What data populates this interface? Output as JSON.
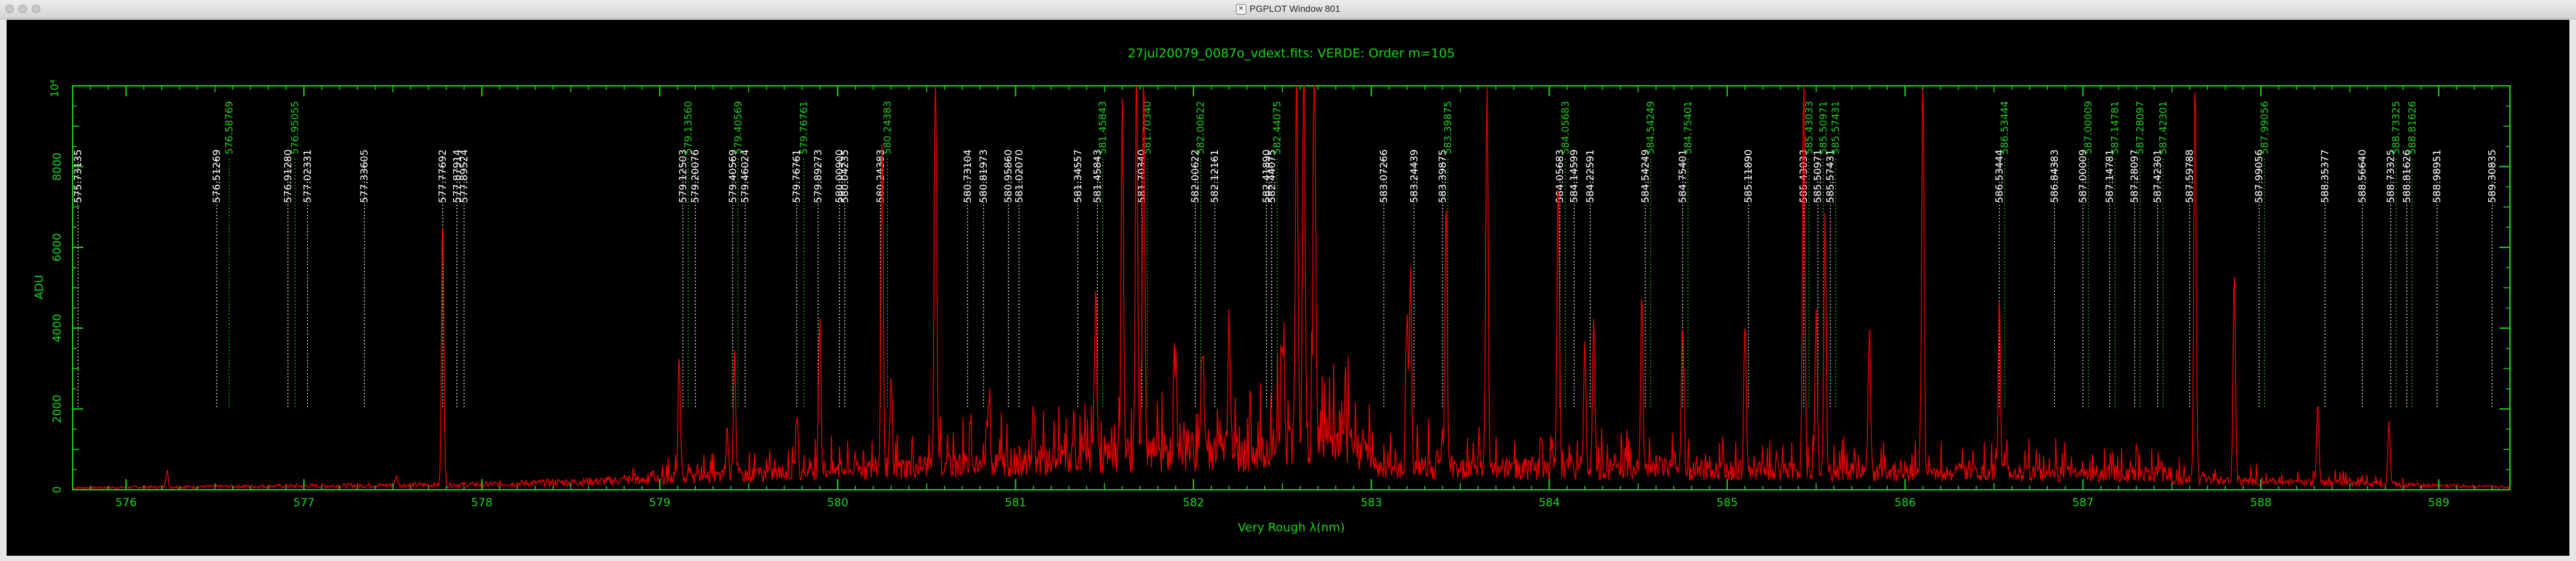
{
  "window": {
    "title": "PGPLOT Window 801",
    "app_icon": "x11-icon"
  },
  "chart_data": {
    "type": "line",
    "title": "27jul20079_0087o_vdext.fits: VERDE: Order m=105",
    "xlabel": "Very Rough λ(nm)",
    "ylabel": "ADU",
    "xlim": [
      575.7,
      589.4
    ],
    "ylim": [
      0,
      10000
    ],
    "x_ticks": [
      576,
      577,
      578,
      579,
      580,
      581,
      582,
      583,
      584,
      585,
      586,
      587,
      588,
      589
    ],
    "y_ticks": [
      0,
      2000,
      4000,
      6000,
      8000
    ],
    "y_top_label": "10⁴",
    "colors": {
      "frame": "#1fd11f",
      "spectrum": "#e60000",
      "label_white": "#ffffff",
      "label_green": "#1fd11f",
      "background": "#000000"
    },
    "series": [
      {
        "peaks": [
          [
            576.23,
            420
          ],
          [
            577.52,
            230
          ],
          [
            577.78,
            6800
          ],
          [
            579.11,
            3000
          ],
          [
            579.38,
            1100
          ],
          [
            579.42,
            3000
          ],
          [
            579.77,
            1500
          ],
          [
            579.9,
            3800
          ],
          [
            580.25,
            8200
          ],
          [
            580.3,
            2000
          ],
          [
            580.55,
            10000
          ],
          [
            580.85,
            1800
          ],
          [
            581.1,
            1500
          ],
          [
            581.45,
            4200
          ],
          [
            581.6,
            8600
          ],
          [
            581.68,
            10000
          ],
          [
            581.72,
            10000
          ],
          [
            581.9,
            2500
          ],
          [
            582.05,
            2500
          ],
          [
            582.2,
            3200
          ],
          [
            582.5,
            2500
          ],
          [
            582.58,
            10000
          ],
          [
            582.62,
            10000
          ],
          [
            582.68,
            10000
          ],
          [
            583.2,
            3500
          ],
          [
            583.22,
            4800
          ],
          [
            583.42,
            6500
          ],
          [
            583.65,
            10000
          ],
          [
            584.05,
            7500
          ],
          [
            584.2,
            3200
          ],
          [
            584.25,
            3800
          ],
          [
            584.52,
            4200
          ],
          [
            584.75,
            3700
          ],
          [
            585.1,
            3700
          ],
          [
            585.43,
            10000
          ],
          [
            585.5,
            4000
          ],
          [
            585.55,
            6500
          ],
          [
            585.8,
            3600
          ],
          [
            586.1,
            10000
          ],
          [
            586.53,
            4200
          ],
          [
            587.63,
            10000
          ],
          [
            587.85,
            5200
          ],
          [
            588.32,
            2000
          ],
          [
            588.72,
            1500
          ]
        ]
      }
    ],
    "line_labels": [
      {
        "x": 575.73,
        "text": "575.73135",
        "green": false
      },
      {
        "x": 576.51,
        "text": "576.51269",
        "green": false
      },
      {
        "x": 576.58,
        "text": "576.58769",
        "green": true
      },
      {
        "x": 576.91,
        "text": "576.91280",
        "green": false
      },
      {
        "x": 576.95,
        "text": "576.95055",
        "green": true
      },
      {
        "x": 577.02,
        "text": "577.02331",
        "green": false
      },
      {
        "x": 577.34,
        "text": "577.33605",
        "green": false
      },
      {
        "x": 577.78,
        "text": "577.77692",
        "green": false
      },
      {
        "x": 577.86,
        "text": "577.87914",
        "green": false
      },
      {
        "x": 577.9,
        "text": "577.89524",
        "green": false
      },
      {
        "x": 579.13,
        "text": "579.12503",
        "green": false
      },
      {
        "x": 579.16,
        "text": "579.13560",
        "green": true
      },
      {
        "x": 579.2,
        "text": "579.20076",
        "green": false
      },
      {
        "x": 579.41,
        "text": "579.40569",
        "green": false
      },
      {
        "x": 579.44,
        "text": "579.40569",
        "green": true
      },
      {
        "x": 579.48,
        "text": "579.46024",
        "green": false
      },
      {
        "x": 579.77,
        "text": "579.76761",
        "green": false
      },
      {
        "x": 579.81,
        "text": "579.76761",
        "green": true
      },
      {
        "x": 579.89,
        "text": "579.89273",
        "green": false
      },
      {
        "x": 580.01,
        "text": "580.00900",
        "green": false
      },
      {
        "x": 580.04,
        "text": "580.04235",
        "green": false
      },
      {
        "x": 580.24,
        "text": "580.24383",
        "green": false
      },
      {
        "x": 580.28,
        "text": "580.24383",
        "green": true
      },
      {
        "x": 580.73,
        "text": "580.73104",
        "green": false
      },
      {
        "x": 580.82,
        "text": "580.81973",
        "green": false
      },
      {
        "x": 580.96,
        "text": "580.95860",
        "green": false
      },
      {
        "x": 581.02,
        "text": "581.02070",
        "green": false
      },
      {
        "x": 581.35,
        "text": "581.34557",
        "green": false
      },
      {
        "x": 581.46,
        "text": "581.45843",
        "green": false
      },
      {
        "x": 581.49,
        "text": "581.45843",
        "green": true
      },
      {
        "x": 581.71,
        "text": "581.70340",
        "green": false
      },
      {
        "x": 581.74,
        "text": "581.70340",
        "green": true
      },
      {
        "x": 582.01,
        "text": "582.00622",
        "green": false
      },
      {
        "x": 582.04,
        "text": "582.00622",
        "green": true
      },
      {
        "x": 582.12,
        "text": "582.12161",
        "green": false
      },
      {
        "x": 582.41,
        "text": "582.41890",
        "green": false
      },
      {
        "x": 582.44,
        "text": "582.44075",
        "green": false
      },
      {
        "x": 582.47,
        "text": "582.44075",
        "green": true
      },
      {
        "x": 583.07,
        "text": "583.07266",
        "green": false
      },
      {
        "x": 583.24,
        "text": "583.24439",
        "green": false
      },
      {
        "x": 583.4,
        "text": "583.39875",
        "green": false
      },
      {
        "x": 583.43,
        "text": "583.39875",
        "green": true
      },
      {
        "x": 584.06,
        "text": "584.05683",
        "green": false
      },
      {
        "x": 584.09,
        "text": "584.05683",
        "green": true
      },
      {
        "x": 584.14,
        "text": "584.14599",
        "green": false
      },
      {
        "x": 584.23,
        "text": "584.22591",
        "green": false
      },
      {
        "x": 584.54,
        "text": "584.54249",
        "green": false
      },
      {
        "x": 584.57,
        "text": "584.54249",
        "green": true
      },
      {
        "x": 584.75,
        "text": "584.75401",
        "green": false
      },
      {
        "x": 584.78,
        "text": "584.75401",
        "green": true
      },
      {
        "x": 585.12,
        "text": "585.11890",
        "green": false
      },
      {
        "x": 585.43,
        "text": "585.43033",
        "green": false
      },
      {
        "x": 585.46,
        "text": "585.43033",
        "green": true
      },
      {
        "x": 585.51,
        "text": "585.50971",
        "green": false
      },
      {
        "x": 585.54,
        "text": "585.50971",
        "green": true
      },
      {
        "x": 585.58,
        "text": "585.57431",
        "green": false
      },
      {
        "x": 585.61,
        "text": "585.57431",
        "green": true
      },
      {
        "x": 586.53,
        "text": "586.53444",
        "green": false
      },
      {
        "x": 586.56,
        "text": "586.53444",
        "green": true
      },
      {
        "x": 586.84,
        "text": "586.84383",
        "green": false
      },
      {
        "x": 587.0,
        "text": "587.00009",
        "green": false
      },
      {
        "x": 587.03,
        "text": "587.00009",
        "green": true
      },
      {
        "x": 587.15,
        "text": "587.14781",
        "green": false
      },
      {
        "x": 587.18,
        "text": "587.14781",
        "green": true
      },
      {
        "x": 587.29,
        "text": "587.28097",
        "green": false
      },
      {
        "x": 587.32,
        "text": "587.28097",
        "green": true
      },
      {
        "x": 587.42,
        "text": "587.42301",
        "green": false
      },
      {
        "x": 587.45,
        "text": "587.42301",
        "green": true
      },
      {
        "x": 587.6,
        "text": "587.59788",
        "green": false
      },
      {
        "x": 587.99,
        "text": "587.99056",
        "green": false
      },
      {
        "x": 588.02,
        "text": "587.99056",
        "green": true
      },
      {
        "x": 588.36,
        "text": "588.35377",
        "green": false
      },
      {
        "x": 588.57,
        "text": "588.56640",
        "green": false
      },
      {
        "x": 588.73,
        "text": "588.73325",
        "green": false
      },
      {
        "x": 588.76,
        "text": "588.73325",
        "green": true
      },
      {
        "x": 588.82,
        "text": "588.81626",
        "green": false
      },
      {
        "x": 588.85,
        "text": "588.81626",
        "green": true
      },
      {
        "x": 588.99,
        "text": "588.98951",
        "green": false
      },
      {
        "x": 589.3,
        "text": "589.30835",
        "green": false
      }
    ]
  }
}
